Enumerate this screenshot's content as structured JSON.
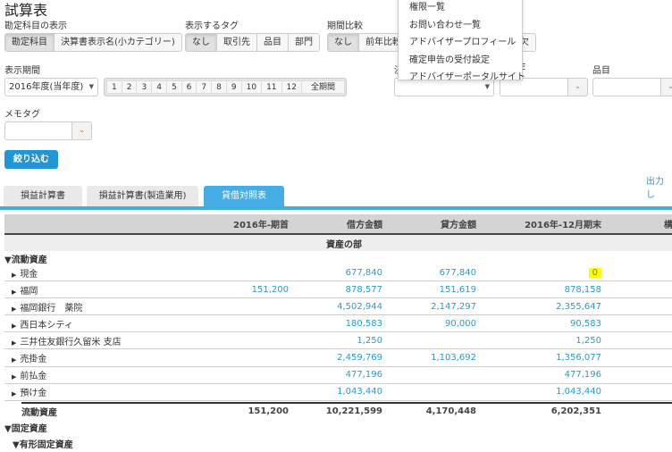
{
  "page_title": "試算表",
  "account_display": {
    "label": "勘定科目の表示",
    "options": [
      "勘定科目",
      "決算書表示名(小カテゴリー)"
    ],
    "selected": "勘定科目"
  },
  "tag_display": {
    "label": "表示するタグ",
    "options": [
      "なし",
      "取引先",
      "品目",
      "部門"
    ],
    "selected": "なし"
  },
  "period_compare": {
    "label": "期間比較",
    "options": [
      "なし",
      "前年比較",
      "欠"
    ],
    "selected": "なし"
  },
  "display_period": {
    "label": "表示期間",
    "year_select": "2016年度(当年度)",
    "months": [
      "1",
      "2",
      "3",
      "4",
      "5",
      "6",
      "7",
      "8",
      "9",
      "10",
      "11",
      "12",
      "全期間"
    ]
  },
  "filters": {
    "partner_label": "決",
    "dept_label": "E",
    "item_label": "品目"
  },
  "memo_tag": {
    "label": "メモタグ"
  },
  "filter_button": "絞り込む",
  "output_link": "出力し",
  "dropdown_menu": [
    "権限一覧",
    "お問い合わせ一覧",
    "アドバイザープロフィール",
    "確定申告の受付設定",
    "アドバイザーポータルサイト"
  ],
  "tabs": [
    {
      "label": "損益計算書"
    },
    {
      "label": "損益計算書(製造業用)"
    },
    {
      "label": "貸借対照表",
      "active": true
    }
  ],
  "table": {
    "headers": [
      "",
      "2016年-期首",
      "借方金額",
      "貸方金額",
      "2016年-12月期末",
      "構"
    ],
    "section": "資産の部",
    "group": "▼流動資産",
    "rows": [
      {
        "name": "現金",
        "opening": "",
        "debit": "677,840",
        "credit": "677,840",
        "closing": "0",
        "highlight": true
      },
      {
        "name": "福岡",
        "opening": "151,200",
        "debit": "878,577",
        "credit": "151,619",
        "closing": "878,158"
      },
      {
        "name": "福岡銀行　薬院",
        "opening": "",
        "debit": "4,502,944",
        "credit": "2,147,297",
        "closing": "2,355,647"
      },
      {
        "name": "西日本シティ",
        "opening": "",
        "debit": "180,583",
        "credit": "90,000",
        "closing": "90,583"
      },
      {
        "name": "三井住友銀行久留米 支店",
        "opening": "",
        "debit": "1,250",
        "credit": "",
        "closing": "1,250"
      },
      {
        "name": "売掛金",
        "opening": "",
        "debit": "2,459,769",
        "credit": "1,103,692",
        "closing": "1,356,077"
      },
      {
        "name": "前払金",
        "opening": "",
        "debit": "477,196",
        "credit": "",
        "closing": "477,196"
      },
      {
        "name": "預け金",
        "opening": "",
        "debit": "1,043,440",
        "credit": "",
        "closing": "1,043,440"
      }
    ],
    "total": {
      "name": "流動資産",
      "opening": "151,200",
      "debit": "10,221,599",
      "credit": "4,170,448",
      "closing": "6,202,351"
    },
    "group2": "▼固定資産",
    "group3": "▼有形固定資産"
  },
  "colors": {
    "accent": "#44ade3",
    "link": "#2a9ad4",
    "highlight": "#ffff00"
  }
}
